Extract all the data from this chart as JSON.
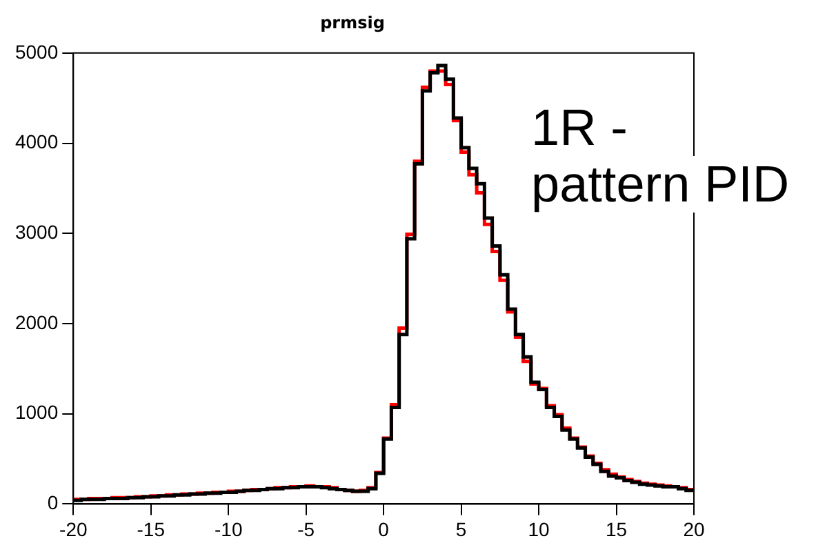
{
  "chart_data": {
    "type": "histogram",
    "title": "prmsig",
    "annotations": [
      "1R - pattern PID"
    ],
    "bins": [
      -20,
      -19.5,
      -19,
      -18.5,
      -18,
      -17.5,
      -17,
      -16.5,
      -16,
      -15.5,
      -15,
      -14.5,
      -14,
      -13.5,
      -13,
      -12.5,
      -12,
      -11.5,
      -11,
      -10.5,
      -10,
      -9.5,
      -9,
      -8.5,
      -8,
      -7.5,
      -7,
      -6.5,
      -6,
      -5.5,
      -5,
      -4.5,
      -4,
      -3.5,
      -3,
      -2.5,
      -2,
      -1.5,
      -1,
      -0.5,
      0,
      0.5,
      1,
      1.5,
      2,
      2.5,
      3,
      3.5,
      4,
      4.5,
      5,
      5.5,
      6,
      6.5,
      7,
      7.5,
      8,
      8.5,
      9,
      9.5,
      10,
      10.5,
      11,
      11.5,
      12,
      12.5,
      13,
      13.5,
      14,
      14.5,
      15,
      15.5,
      16,
      16.5,
      17,
      17.5,
      18,
      18.5,
      19,
      19.5,
      20
    ],
    "series": [
      {
        "color": "#ff0000",
        "values": [
          50,
          50,
          60,
          60,
          60,
          70,
          70,
          70,
          80,
          80,
          90,
          90,
          100,
          100,
          110,
          110,
          120,
          120,
          130,
          130,
          140,
          140,
          150,
          160,
          160,
          170,
          180,
          180,
          190,
          190,
          200,
          190,
          190,
          180,
          160,
          150,
          140,
          150,
          180,
          350,
          730,
          1100,
          1950,
          2990,
          3800,
          4620,
          4800,
          4800,
          4650,
          4250,
          3900,
          3650,
          3450,
          3100,
          2800,
          2480,
          2130,
          1850,
          1580,
          1330,
          1280,
          1090,
          990,
          840,
          730,
          630,
          530,
          450,
          380,
          330,
          300,
          270,
          250,
          230,
          220,
          210,
          200,
          190,
          180,
          160
        ]
      },
      {
        "color": "#000000",
        "values": [
          40,
          50,
          50,
          50,
          60,
          60,
          60,
          70,
          70,
          80,
          80,
          90,
          90,
          100,
          100,
          110,
          110,
          120,
          120,
          130,
          130,
          140,
          150,
          150,
          160,
          170,
          170,
          180,
          180,
          190,
          190,
          190,
          180,
          170,
          160,
          150,
          140,
          140,
          170,
          340,
          720,
          1070,
          1880,
          2940,
          3770,
          4580,
          4780,
          4860,
          4710,
          4280,
          3950,
          3720,
          3550,
          3170,
          2860,
          2540,
          2160,
          1880,
          1630,
          1350,
          1270,
          1070,
          970,
          820,
          720,
          620,
          520,
          440,
          360,
          310,
          290,
          260,
          240,
          220,
          210,
          200,
          190,
          190,
          170,
          150
        ]
      }
    ],
    "xlim": [
      -20,
      20
    ],
    "xticks": [
      -20,
      -15,
      -10,
      -5,
      0,
      5,
      10,
      15,
      20
    ],
    "ylim": [
      0,
      5000
    ],
    "yticks": [
      0,
      1000,
      2000,
      3000,
      4000,
      5000
    ],
    "grid": false,
    "legend": false
  }
}
